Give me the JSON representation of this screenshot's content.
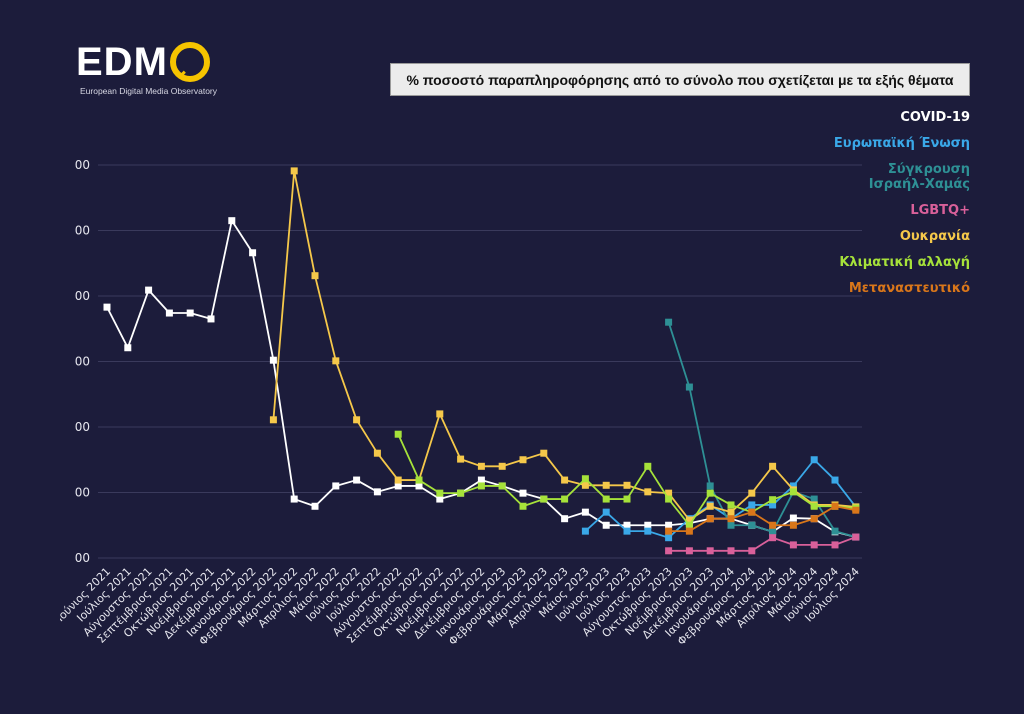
{
  "logo": {
    "text": "EDM",
    "subtitle": "European Digital Media Observatory"
  },
  "colors": {
    "background": "#1c1c3b",
    "grid": "#3a3a5c"
  },
  "chart_data": {
    "type": "line",
    "title": "% ποσοστό παραπληροφόρησης από το σύνολο που σχετίζεται με τα εξής θέματα",
    "xlabel": "",
    "ylabel": "",
    "ylim": [
      0,
      60
    ],
    "yticks": [
      0,
      10,
      20,
      30,
      40,
      50,
      60
    ],
    "ytick_labels": [
      "00",
      "00",
      "00",
      "00",
      "00",
      "00",
      "00"
    ],
    "grid": true,
    "legend_position": "right",
    "categories": [
      "Ιούνιος 2021",
      "Ιούλιος 2021",
      "Αύγουστος 2021",
      "Σεπτέμβριος 2021",
      "Οκτώβριος 2021",
      "Νοέμβριος 2021",
      "Δεκέμβριος 2021",
      "Ιανουάριος 2022",
      "Φεβρουάριος 2022",
      "Μάρτιος 2022",
      "Απρίλιος 2022",
      "Μάιος 2022",
      "Ιούνιος 2022",
      "Ιούλιος 2022",
      "Αύγουστος 2022",
      "Σεπτέμβριος 2022",
      "Οκτώβριος 2022",
      "Νοέμβριος 2022",
      "Δεκέμβριος 2022",
      "Ιανουάριος 2023",
      "Φεβρουάριος 2023",
      "Μάρτιος 2023",
      "Απρίλιος 2023",
      "Μάιος 2023",
      "Ιούνιος 2023",
      "Ιούλιος 2023",
      "Αύγουστος 2023",
      "Οκτώβριος 2023",
      "Νοέμβριος 2023",
      "Δεκέμβριος 2023",
      "Ιανουάριος 2024",
      "Φεβρουάριος 2024",
      "Μάρτιος 2024",
      "Απρίλιος 2024",
      "Μάιος 2024",
      "Ιούνιος 2024",
      "Ιούλιος 2024"
    ],
    "series": [
      {
        "name": "COVID-19",
        "color": "#ffffff",
        "markers": true,
        "values": [
          38.3,
          32.1,
          40.9,
          37.4,
          37.4,
          36.5,
          51.5,
          46.6,
          30.2,
          9.0,
          7.9,
          11.0,
          11.9,
          10.1,
          11.0,
          11.0,
          9.0,
          9.9,
          11.9,
          11.0,
          9.9,
          9.0,
          6.0,
          7.0,
          5.0,
          5.0,
          5.0,
          5.0,
          5.3,
          6.0,
          6.0,
          5.0,
          4.0,
          6.1,
          6.0,
          4.0,
          3.2
        ]
      },
      {
        "name": "Ευρωπαϊκή Ένωση",
        "color": "#3aa8e8",
        "markers": true,
        "values": [
          null,
          null,
          null,
          null,
          null,
          null,
          null,
          null,
          null,
          null,
          null,
          null,
          null,
          null,
          null,
          null,
          null,
          null,
          null,
          null,
          null,
          null,
          null,
          4.1,
          7.0,
          4.1,
          4.1,
          3.1,
          6.0,
          8.1,
          6.0,
          8.1,
          8.1,
          11.0,
          15.0,
          11.9,
          7.8
        ]
      },
      {
        "name": "Σύγκρουση Ισραήλ-Χαμάς",
        "color": "#2e9095",
        "markers": true,
        "values": [
          null,
          null,
          null,
          null,
          null,
          null,
          null,
          null,
          null,
          null,
          null,
          null,
          null,
          null,
          null,
          null,
          null,
          null,
          null,
          null,
          null,
          null,
          null,
          null,
          null,
          null,
          null,
          36.0,
          26.1,
          11.0,
          5.0,
          5.0,
          4.0,
          10.1,
          9.0,
          4.1,
          3.2
        ]
      },
      {
        "name": "LGBTQ+",
        "color": "#d9609a",
        "markers": true,
        "values": [
          null,
          null,
          null,
          null,
          null,
          null,
          null,
          null,
          null,
          null,
          null,
          null,
          null,
          null,
          null,
          null,
          null,
          null,
          null,
          null,
          null,
          null,
          null,
          null,
          null,
          null,
          null,
          1.1,
          1.1,
          1.1,
          1.1,
          1.1,
          3.1,
          2.0,
          2.0,
          2.0,
          3.2
        ]
      },
      {
        "name": "Ουκρανία",
        "color": "#f5c84a",
        "markers": true,
        "values": [
          null,
          null,
          null,
          null,
          null,
          null,
          null,
          null,
          21.1,
          59.1,
          43.1,
          30.1,
          21.1,
          16.0,
          11.9,
          11.9,
          22.0,
          15.1,
          14.0,
          14.0,
          15.0,
          16.0,
          11.9,
          11.1,
          11.1,
          11.1,
          10.1,
          9.9,
          5.8,
          7.9,
          7.0,
          9.9,
          14.0,
          10.4,
          8.1,
          8.1,
          7.8
        ]
      },
      {
        "name": "Κλιματική αλλαγή",
        "color": "#a6e23a",
        "markers": true,
        "values": [
          null,
          null,
          null,
          null,
          null,
          null,
          null,
          null,
          null,
          null,
          null,
          null,
          null,
          null,
          18.9,
          11.9,
          9.9,
          9.9,
          11.0,
          11.0,
          7.9,
          9.0,
          9.0,
          12.1,
          9.0,
          9.0,
          14.0,
          9.0,
          5.0,
          9.9,
          8.1,
          7.0,
          8.9,
          10.1,
          7.9,
          7.9,
          7.6
        ]
      },
      {
        "name": "Μεταναστευτικό",
        "color": "#d9761a",
        "markers": true,
        "values": [
          null,
          null,
          null,
          null,
          null,
          null,
          null,
          null,
          null,
          null,
          null,
          null,
          null,
          null,
          null,
          null,
          null,
          null,
          null,
          null,
          null,
          null,
          null,
          null,
          null,
          null,
          null,
          4.1,
          4.1,
          6.0,
          6.0,
          7.0,
          5.0,
          5.0,
          6.0,
          7.9,
          7.3
        ]
      }
    ]
  }
}
